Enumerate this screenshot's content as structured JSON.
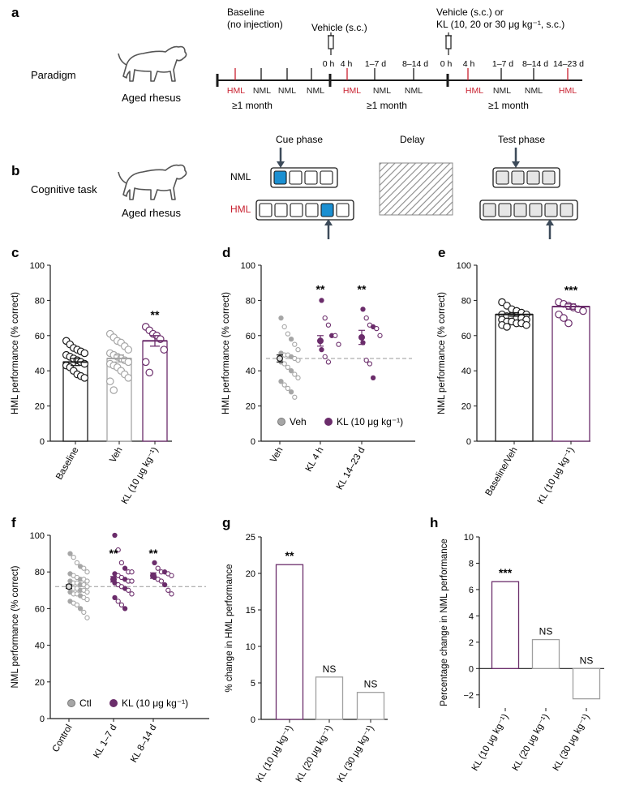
{
  "colors": {
    "kl": "#6b2d6b",
    "veh": "#a6a6a6",
    "hml": "#c8202f",
    "cue": "#1a8fd1",
    "ink": "#1a1a1a"
  },
  "panel_a": {
    "letter": "a",
    "label": "Paradigm",
    "animal": "Aged rhesus",
    "phase1_head": "Baseline",
    "phase1_sub": "(no injection)",
    "phase2_head": "Vehicle (s.c.)",
    "phase3_head": "Vehicle (s.c.) or",
    "phase3_sub": "KL (10, 20 or 30 μg kg⁻¹, s.c.)",
    "times2": [
      "0 h",
      "4 h",
      "1–7 d",
      "8–14 d"
    ],
    "times3": [
      "0 h",
      "4 h",
      "1–7 d",
      "8–14 d",
      "14–23 d"
    ],
    "tasks1": [
      "HML",
      "NML",
      "NML",
      "NML"
    ],
    "tasks2": [
      "HML",
      "NML",
      "NML"
    ],
    "tasks3": [
      "HML",
      "NML",
      "NML",
      "HML"
    ],
    "duration": "≥1 month"
  },
  "panel_b": {
    "letter": "b",
    "label": "Cognitive task",
    "animal": "Aged rhesus",
    "cue": "Cue phase",
    "delay": "Delay",
    "test": "Test phase",
    "nml": "NML",
    "hml": "HML"
  },
  "chart_data": [
    {
      "panel": "c",
      "type": "bar",
      "ylabel": "HML performance (% correct)",
      "ylim": [
        0,
        100
      ],
      "yticks": [
        0,
        20,
        40,
        60,
        80,
        100
      ],
      "categories": [
        "Baseline",
        "Veh",
        "KL (10 μg kg⁻¹)"
      ],
      "values": [
        45,
        47,
        57
      ],
      "sem": [
        2,
        2,
        3
      ],
      "annotations": [
        "",
        "",
        "**"
      ],
      "points": [
        [
          57,
          55,
          53,
          52,
          51,
          50,
          49,
          48,
          47,
          46,
          45,
          44,
          43,
          42,
          40,
          38,
          37,
          36
        ],
        [
          61,
          59,
          57,
          56,
          54,
          52,
          50,
          49,
          48,
          47,
          46,
          45,
          44,
          43,
          42,
          40,
          38,
          36,
          34,
          29
        ],
        [
          65,
          63,
          61,
          60,
          58,
          52,
          45,
          39
        ]
      ]
    },
    {
      "panel": "d",
      "type": "scatter",
      "ylabel": "HML performance (% correct)",
      "ylim": [
        0,
        100
      ],
      "yticks": [
        0,
        20,
        40,
        60,
        80,
        100
      ],
      "categories": [
        "Veh",
        "KL 4 h",
        "KL 14–23 d"
      ],
      "means": [
        47,
        57,
        59
      ],
      "sem": [
        2,
        3,
        4
      ],
      "reference": 47,
      "annotations": [
        "",
        "**",
        "**"
      ],
      "legend": [
        "Veh",
        "KL (10 μg kg⁻¹)"
      ],
      "points": [
        [
          70,
          65,
          61,
          58,
          55,
          52,
          50,
          49,
          49,
          48,
          47,
          46,
          45,
          44,
          42,
          40,
          38,
          36,
          34,
          32,
          30,
          28,
          25
        ],
        [
          80,
          70,
          66,
          60,
          60,
          55,
          52,
          48,
          45
        ],
        [
          75,
          70,
          66,
          65,
          64,
          60,
          56,
          46,
          44,
          36
        ]
      ]
    },
    {
      "panel": "e",
      "type": "bar",
      "ylabel": "NML performance (% correct)",
      "ylim": [
        0,
        100
      ],
      "yticks": [
        0,
        20,
        40,
        60,
        80,
        100
      ],
      "categories": [
        "Baseline/Veh",
        "KL (10 μg kg⁻¹)"
      ],
      "values": [
        72,
        76.5
      ],
      "sem": [
        1,
        1.5
      ],
      "annotations": [
        "",
        "***"
      ],
      "points": [
        [
          79,
          77,
          75,
          74,
          73,
          72,
          72,
          71,
          71,
          70,
          70,
          69,
          69,
          68,
          68,
          67,
          67,
          66,
          66,
          65
        ],
        [
          79,
          78,
          77,
          76,
          75,
          74,
          72,
          70,
          67
        ]
      ]
    },
    {
      "panel": "f",
      "type": "scatter",
      "ylabel": "NML performance (% correct)",
      "ylim": [
        0,
        100
      ],
      "yticks": [
        0,
        20,
        40,
        60,
        80,
        100
      ],
      "categories": [
        "Control",
        "KL 1–7 d",
        "KL 8–14 d"
      ],
      "means": [
        72,
        76,
        78
      ],
      "sem": [
        1,
        1.5,
        1.5
      ],
      "reference": 72,
      "annotations": [
        "",
        "**",
        "**"
      ],
      "legend": [
        "Ctl",
        "KL (10 μg kg⁻¹)"
      ],
      "points": [
        [
          90,
          88,
          85,
          83,
          82,
          80,
          79,
          78,
          77,
          76,
          76,
          75,
          75,
          74,
          74,
          73,
          73,
          72,
          72,
          71,
          71,
          70,
          70,
          69,
          69,
          68,
          68,
          67,
          66,
          65,
          64,
          63,
          62,
          60,
          58,
          55
        ],
        [
          100,
          92,
          85,
          82,
          80,
          80,
          79,
          78,
          77,
          76,
          75,
          75,
          74,
          73,
          72,
          71,
          70,
          68,
          66,
          64,
          62,
          60
        ],
        [
          85,
          82,
          80,
          80,
          79,
          78,
          77,
          76,
          75,
          73,
          70,
          68
        ]
      ]
    },
    {
      "panel": "g",
      "type": "bar",
      "ylabel": "% change in HML performance",
      "ylim": [
        0,
        25
      ],
      "yticks": [
        0,
        5,
        10,
        15,
        20,
        25
      ],
      "categories": [
        "KL (10 μg kg⁻¹)",
        "KL (20 μg kg⁻¹)",
        "KL (30 μg kg⁻¹)"
      ],
      "values": [
        21.2,
        5.8,
        3.7
      ],
      "annotations": [
        "**",
        "NS",
        "NS"
      ]
    },
    {
      "panel": "h",
      "type": "bar",
      "ylabel": "Percentage change in NML performance",
      "ylim": [
        -3,
        10
      ],
      "yticks": [
        -2,
        0,
        2,
        4,
        6,
        8,
        10
      ],
      "categories": [
        "KL (10 μg kg⁻¹)",
        "KL (20 μg kg⁻¹)",
        "KL (30 μg kg⁻¹)"
      ],
      "values": [
        6.6,
        2.2,
        -2.3
      ],
      "annotations": [
        "***",
        "NS",
        "NS"
      ]
    }
  ]
}
